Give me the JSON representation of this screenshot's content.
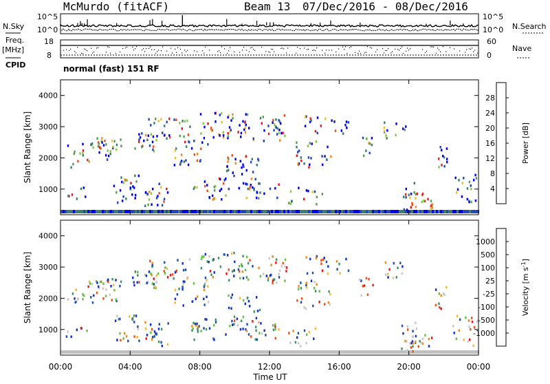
{
  "header": {
    "station": "McMurdo (fitACF)",
    "beam": "Beam 13",
    "date_range": "07/Dec/2016 - 08/Dec/2016"
  },
  "aux_panels": {
    "nsky_label": "N.Sky",
    "nsky_ticks": [
      "10^5",
      "10^0"
    ],
    "nsearch_label": "N.Search",
    "nsearch_ticks": [
      "10^5",
      "10^0"
    ],
    "freq_label_1": "Freq.",
    "freq_label_2": "[MHz]",
    "freq_ticks": [
      "18",
      "8"
    ],
    "nave_label": "Nave",
    "nave_ticks": [
      "60",
      "0"
    ],
    "cpid_label": "CPID",
    "cpid_text": "normal (fast) 151 RF"
  },
  "colors": {
    "power_scale": [
      "#0000ee",
      "#2248b8",
      "#3a8070",
      "#58a050",
      "#88c848",
      "#f0c020",
      "#f08828",
      "#ec5020",
      "#e81818"
    ],
    "velocity_scale": [
      "#e81818",
      "#f05018",
      "#f08a1c",
      "#f4b83a",
      "#c8c8c8",
      "#66c040",
      "#3e9468",
      "#2050a8",
      "#1030c8"
    ],
    "ground_scatter": "#c0c0c0"
  },
  "chart_data": [
    {
      "type": "heatmap",
      "name": "power-panel",
      "ylabel": "Slant Range [km]",
      "yticks": [
        "1000",
        "2000",
        "3000",
        "4000"
      ],
      "ylim_km": [
        180,
        4500
      ],
      "colorbar_label": "Power [dB]",
      "colorbar_ticks": [
        "4",
        "8",
        "12",
        "16",
        "20",
        "24",
        "28"
      ],
      "clim": [
        0,
        30
      ]
    },
    {
      "type": "heatmap",
      "name": "velocity-panel",
      "ylabel": "Slant Range [km]",
      "yticks": [
        "1000",
        "2000",
        "3000",
        "4000"
      ],
      "ylim_km": [
        180,
        4500
      ],
      "colorbar_label": "Velocity [m s",
      "colorbar_label_sup": "-1",
      "colorbar_label_end": "]",
      "colorbar_ticks": [
        "-1000",
        "-500",
        "-100",
        "-25",
        "25",
        "100",
        "500",
        "1000"
      ],
      "clim": [
        -1000,
        1000
      ]
    }
  ],
  "xaxis": {
    "ticks": [
      "00:00",
      "04:00",
      "08:00",
      "12:00",
      "16:00",
      "20:00",
      "00:00"
    ],
    "label": "Time UT",
    "xlim_h": [
      0,
      24
    ]
  }
}
